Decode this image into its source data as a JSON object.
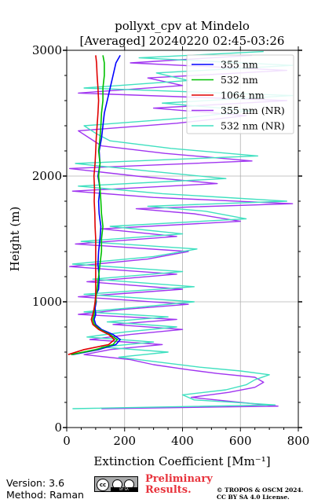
{
  "header": {
    "title_line1": "pollyxt_cpv at Mindelo",
    "title_line2": "[Averaged] 20240220 02:45-03:26"
  },
  "footer": {
    "version": "Version: 3.6",
    "method": "Method: Raman",
    "preliminary_line1": "Preliminary",
    "preliminary_line2": "Results.",
    "copyright_line1": "© TROPOS & OSCM 2024.",
    "copyright_line2": "CC BY SA 4.0 License.",
    "cc_badge_icon": "cc",
    "cc_strip": "BY SA"
  },
  "chart_data": {
    "type": "line",
    "xlabel": "Extinction Coefficient [Mm⁻¹]",
    "ylabel": "Height (m)",
    "xlim": [
      0,
      800
    ],
    "ylim": [
      0,
      3000
    ],
    "xticks": [
      "0",
      "200",
      "400",
      "600",
      "800"
    ],
    "yticks": [
      "0",
      "1000",
      "2000",
      "3000"
    ],
    "grid": true,
    "legend_position": "top-right",
    "series": [
      {
        "name": "355 nm",
        "color": "#0000ff",
        "y": [
          580,
          620,
          660,
          700,
          740,
          780,
          820,
          860,
          900,
          950,
          1000,
          1050,
          1100,
          1200,
          1300,
          1400,
          1500,
          1600,
          1700,
          1800,
          1900,
          2000,
          2100,
          2200,
          2300,
          2400,
          2500,
          2600,
          2700,
          2800,
          2900,
          2960
        ],
        "x": [
          20,
          110,
          170,
          185,
          160,
          120,
          100,
          95,
          100,
          98,
          102,
          100,
          110,
          112,
          108,
          110,
          115,
          118,
          112,
          110,
          115,
          108,
          115,
          112,
          120,
          125,
          130,
          140,
          150,
          160,
          170,
          185
        ]
      },
      {
        "name": "532 nm",
        "color": "#00c000",
        "y": [
          580,
          620,
          660,
          700,
          740,
          780,
          820,
          860,
          900,
          950,
          1000,
          1050,
          1100,
          1200,
          1300,
          1400,
          1500,
          1600,
          1700,
          1800,
          1900,
          2000,
          2100,
          2200,
          2300,
          2400,
          2500,
          2600,
          2700,
          2800,
          2900,
          2960
        ],
        "x": [
          15,
          100,
          160,
          175,
          150,
          115,
          95,
          90,
          95,
          95,
          100,
          102,
          105,
          110,
          115,
          120,
          120,
          125,
          120,
          118,
          115,
          110,
          115,
          110,
          115,
          118,
          120,
          125,
          125,
          130,
          130,
          125
        ]
      },
      {
        "name": "1064 nm",
        "color": "#e00000",
        "y": [
          580,
          620,
          660,
          700,
          740,
          780,
          820,
          860,
          900,
          950,
          1000,
          1050,
          1100,
          1200,
          1300,
          1400,
          1500,
          1600,
          1700,
          1800,
          1900,
          2000,
          2100,
          2200,
          2300,
          2400,
          2500,
          2600,
          2700,
          2800,
          2900,
          2960
        ],
        "x": [
          5,
          60,
          145,
          165,
          145,
          110,
          90,
          85,
          90,
          95,
          98,
          100,
          100,
          100,
          100,
          100,
          100,
          98,
          97,
          95,
          96,
          94,
          98,
          100,
          102,
          105,
          108,
          110,
          108,
          105,
          103,
          100
        ]
      },
      {
        "name": "355 nm (NR)",
        "color": "#a035f0",
        "y": [
          150,
          170,
          200,
          240,
          280,
          320,
          360,
          400,
          430,
          460,
          500,
          540,
          580,
          620,
          660,
          700,
          740,
          780,
          820,
          860,
          900,
          940,
          980,
          1040,
          1100,
          1160,
          1220,
          1280,
          1340,
          1400,
          1460,
          1520,
          1580,
          1640,
          1700,
          1740,
          1780,
          1830,
          1880,
          1940,
          2000,
          2060,
          2120,
          2180,
          2240,
          2300,
          2360,
          2420,
          2480,
          2540,
          2600,
          2660,
          2720,
          2780,
          2840,
          2900,
          2960
        ],
        "x": [
          120,
          730,
          600,
          430,
          560,
          650,
          680,
          650,
          520,
          420,
          300,
          220,
          60,
          150,
          330,
          80,
          220,
          400,
          160,
          380,
          40,
          200,
          420,
          40,
          400,
          70,
          380,
          10,
          280,
          420,
          30,
          380,
          120,
          600,
          440,
          240,
          780,
          300,
          20,
          520,
          240,
          10,
          640,
          340,
          120,
          80,
          40,
          380,
          620,
          300,
          760,
          40,
          400,
          280,
          760,
          220,
          640
        ]
      },
      {
        "name": "532 nm (NR)",
        "color": "#40e0c0",
        "y": [
          150,
          180,
          220,
          260,
          300,
          340,
          380,
          420,
          450,
          480,
          520,
          560,
          600,
          640,
          680,
          720,
          760,
          800,
          840,
          880,
          920,
          960,
          1000,
          1060,
          1120,
          1180,
          1240,
          1300,
          1360,
          1420,
          1480,
          1540,
          1600,
          1660,
          1720,
          1760,
          1800,
          1860,
          1920,
          1980,
          2040,
          2100,
          2160,
          2220,
          2280,
          2340,
          2400,
          2460,
          2520,
          2580,
          2640,
          2700,
          2760,
          2820,
          2880,
          2940,
          2990
        ],
        "x": [
          20,
          720,
          440,
          400,
          550,
          620,
          650,
          700,
          600,
          460,
          320,
          180,
          350,
          120,
          300,
          70,
          200,
          380,
          140,
          350,
          60,
          260,
          440,
          60,
          440,
          90,
          400,
          20,
          300,
          450,
          50,
          400,
          150,
          620,
          480,
          280,
          760,
          330,
          40,
          550,
          280,
          30,
          660,
          360,
          150,
          100,
          60,
          400,
          640,
          330,
          780,
          60,
          420,
          310,
          780,
          250,
          680
        ]
      }
    ]
  }
}
